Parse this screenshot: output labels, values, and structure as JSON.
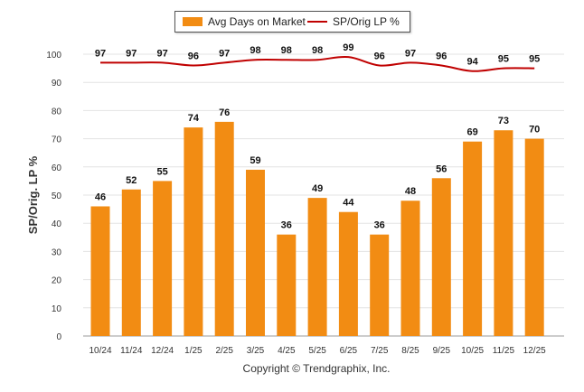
{
  "chart_data": {
    "type": "bar+line",
    "categories": [
      "10/24",
      "11/24",
      "12/24",
      "1/25",
      "2/25",
      "3/25",
      "4/25",
      "5/25",
      "6/25",
      "7/25",
      "8/25",
      "9/25",
      "10/25",
      "11/25",
      "12/25"
    ],
    "series": [
      {
        "name": "Avg Days on Market",
        "type": "bar",
        "color": "#f28c13",
        "values": [
          46,
          52,
          55,
          74,
          76,
          59,
          36,
          49,
          44,
          36,
          48,
          56,
          69,
          73,
          70
        ]
      },
      {
        "name": "SP/Orig LP %",
        "type": "line",
        "color": "#c00000",
        "values": [
          97,
          97,
          97,
          96,
          97,
          98,
          98,
          98,
          99,
          96,
          97,
          96,
          94,
          95,
          95
        ]
      }
    ],
    "ylabel": "SP/Orig. LP %",
    "ylim": [
      0,
      100
    ],
    "yticks": [
      "0",
      "10",
      "20",
      "30",
      "40",
      "50",
      "60",
      "70",
      "80",
      "90",
      "100"
    ],
    "grid": true,
    "legend_position": "top-center"
  },
  "legend": {
    "bar_label": "Avg Days on Market",
    "line_label": "SP/Orig LP %"
  },
  "footer": {
    "copyright": "Copyright © Trendgraphix, Inc."
  }
}
